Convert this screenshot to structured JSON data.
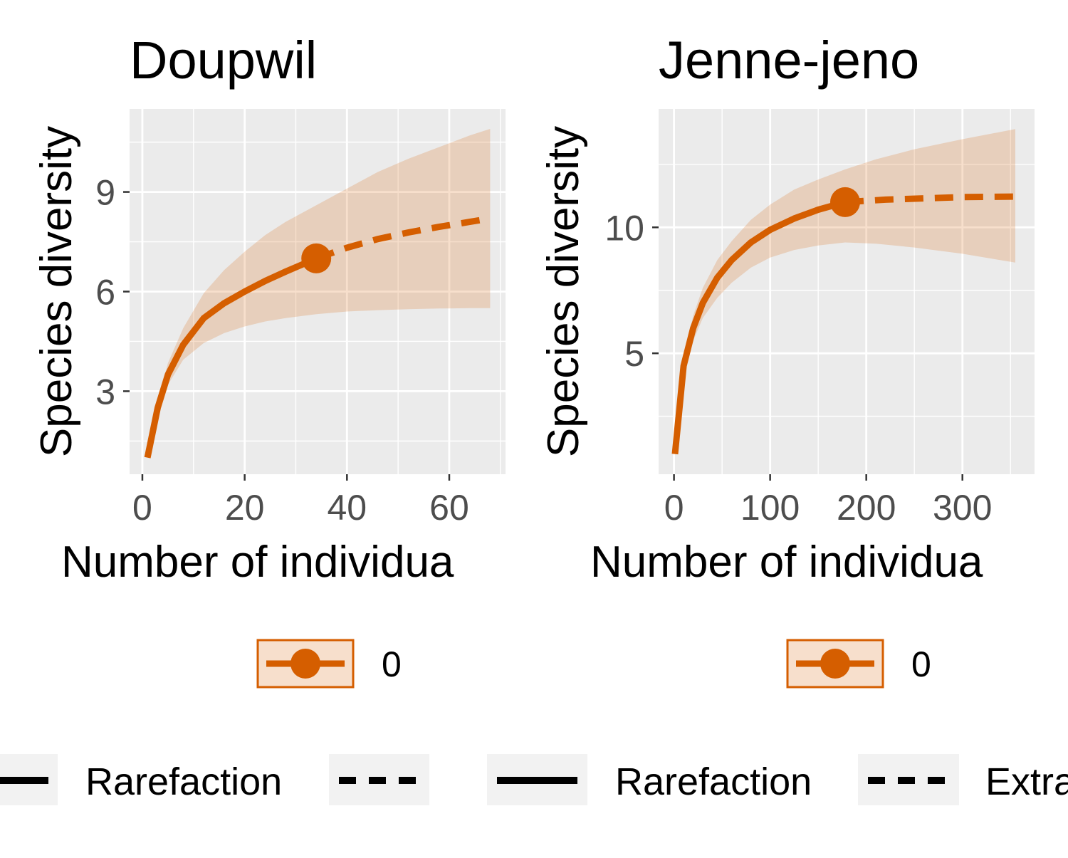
{
  "chart_data": [
    {
      "type": "line",
      "title": "Doupwil",
      "xlabel": "Number of individua",
      "ylabel": "Species diversity",
      "xlim": [
        -2.5,
        71
      ],
      "ylim": [
        0.5,
        11.5
      ],
      "xticks": [
        0,
        20,
        40,
        60
      ],
      "xtick_labels": [
        "0",
        "20",
        "40",
        "60"
      ],
      "yticks": [
        3,
        6,
        9
      ],
      "ytick_labels": [
        "3",
        "6",
        "9"
      ],
      "grid": true,
      "color": "#D55E00",
      "observed": {
        "x": 34,
        "y": 7.0
      },
      "rarefaction": {
        "x": [
          1,
          3,
          5,
          8,
          12,
          16,
          20,
          24,
          28,
          31,
          34
        ],
        "y": [
          1.0,
          2.5,
          3.5,
          4.4,
          5.2,
          5.65,
          6.0,
          6.32,
          6.6,
          6.8,
          7.0
        ]
      },
      "extrapolation": {
        "x": [
          34,
          40,
          46,
          52,
          58,
          64,
          68
        ],
        "y": [
          7.0,
          7.32,
          7.58,
          7.78,
          7.95,
          8.1,
          8.2
        ]
      },
      "confidence_band": {
        "x": [
          1,
          3,
          5,
          8,
          12,
          16,
          20,
          24,
          28,
          34,
          40,
          46,
          52,
          58,
          64,
          68
        ],
        "lower": [
          1.0,
          2.3,
          3.2,
          3.95,
          4.45,
          4.75,
          4.95,
          5.1,
          5.2,
          5.32,
          5.4,
          5.44,
          5.47,
          5.49,
          5.5,
          5.5
        ],
        "upper": [
          1.0,
          2.7,
          3.85,
          4.9,
          5.95,
          6.65,
          7.2,
          7.7,
          8.1,
          8.6,
          9.1,
          9.6,
          10.0,
          10.35,
          10.7,
          10.9
        ]
      },
      "legend": {
        "label": "0"
      }
    },
    {
      "type": "line",
      "title": "Jenne-jeno",
      "xlabel": "Number of individua",
      "ylabel": "Species diversity",
      "xlim": [
        -16,
        375
      ],
      "ylim": [
        0.2,
        14.7
      ],
      "xticks": [
        0,
        100,
        200,
        300
      ],
      "xtick_labels": [
        "0",
        "100",
        "200",
        "300"
      ],
      "yticks": [
        5,
        10
      ],
      "ytick_labels": [
        "5",
        "10"
      ],
      "grid": true,
      "color": "#D55E00",
      "observed": {
        "x": 178,
        "y": 11.0
      },
      "rarefaction": {
        "x": [
          1,
          10,
          20,
          30,
          45,
          60,
          80,
          100,
          125,
          150,
          178
        ],
        "y": [
          1.0,
          4.5,
          6.0,
          7.0,
          8.0,
          8.7,
          9.4,
          9.9,
          10.35,
          10.7,
          11.0
        ]
      },
      "extrapolation": {
        "x": [
          178,
          220,
          260,
          300,
          355
        ],
        "y": [
          11.0,
          11.1,
          11.15,
          11.2,
          11.22
        ]
      },
      "confidence_band": {
        "x": [
          1,
          10,
          20,
          30,
          45,
          60,
          80,
          100,
          125,
          150,
          178,
          210,
          250,
          300,
          355
        ],
        "lower": [
          1.0,
          4.2,
          5.5,
          6.4,
          7.2,
          7.8,
          8.4,
          8.8,
          9.1,
          9.28,
          9.4,
          9.35,
          9.2,
          8.95,
          8.6
        ],
        "upper": [
          1.0,
          4.8,
          6.5,
          7.6,
          8.7,
          9.45,
          10.3,
          10.9,
          11.5,
          11.9,
          12.3,
          12.7,
          13.1,
          13.5,
          13.9
        ]
      },
      "legend": {
        "label": "0"
      }
    }
  ],
  "method_legend": {
    "left": [
      "Rarefaction"
    ],
    "right": [
      "Rarefaction",
      "Extra"
    ]
  }
}
